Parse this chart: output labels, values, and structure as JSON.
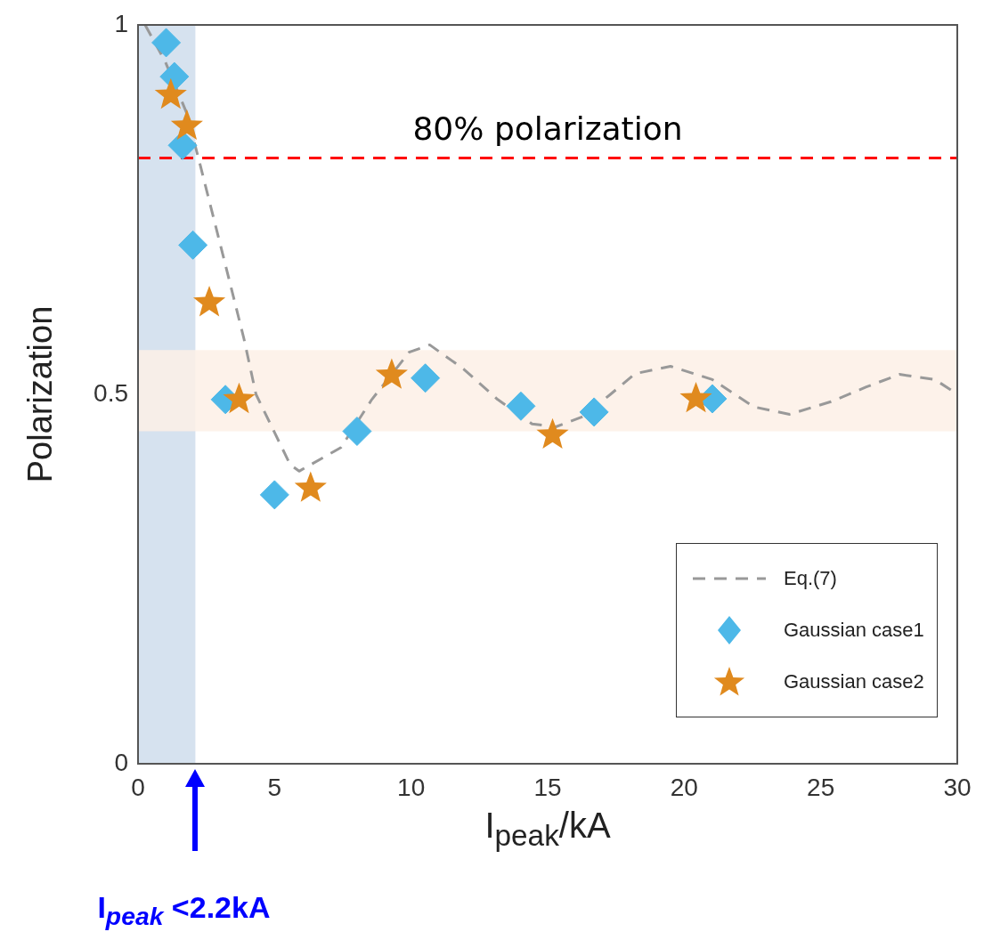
{
  "chart_data": {
    "type": "scatter",
    "xlabel": "I$_{peak}$/kA",
    "ylabel": "Polarization",
    "xlim": [
      0,
      30
    ],
    "xticks": [
      0,
      5,
      10,
      15,
      20,
      25,
      30
    ],
    "ylim": [
      0,
      1
    ],
    "yticks": [
      0,
      0.5,
      1
    ],
    "grid": false,
    "legend": "bottom right",
    "series": [
      {
        "name": "Eq.(7)",
        "type": "line",
        "color": "#999999",
        "line_style": "dashed",
        "marker": "none",
        "x": [
          0.26,
          1.0,
          1.79,
          2.28,
          3.1,
          3.88,
          4.32,
          5.57,
          5.9,
          7.43,
          8.56,
          9.93,
          10.68,
          11.93,
          13.17,
          14.43,
          15.3,
          16.3,
          17.3,
          18.2,
          19.5,
          21.03,
          22.55,
          23.86,
          25.37,
          26.67,
          27.88,
          29.18,
          29.93
        ],
        "values": [
          1.0,
          0.95,
          0.88,
          0.81,
          0.69,
          0.575,
          0.5,
          0.405,
          0.396,
          0.428,
          0.493,
          0.557,
          0.567,
          0.534,
          0.493,
          0.46,
          0.456,
          0.47,
          0.5,
          0.528,
          0.538,
          0.52,
          0.483,
          0.473,
          0.49,
          0.51,
          0.527,
          0.52,
          0.502
        ]
      },
      {
        "name": "Gaussian case1",
        "type": "scatter",
        "color": "#4db8e8",
        "marker": "diamond",
        "x": [
          1.03,
          1.33,
          1.63,
          2.01,
          3.2,
          5.0,
          8.02,
          10.52,
          14.02,
          16.7,
          21.03
        ],
        "values": [
          0.976,
          0.93,
          0.837,
          0.702,
          0.493,
          0.364,
          0.45,
          0.522,
          0.484,
          0.476,
          0.494
        ]
      },
      {
        "name": "Gaussian case2",
        "type": "scatter",
        "color": "#e08a1e",
        "marker": "star",
        "x": [
          1.2,
          1.79,
          2.61,
          3.7,
          6.32,
          9.29,
          15.18,
          20.43
        ],
        "values": [
          0.905,
          0.863,
          0.624,
          0.493,
          0.373,
          0.526,
          0.445,
          0.494
        ]
      }
    ],
    "ref_lines": [
      {
        "axis": "y",
        "value": 0.82,
        "label": "80% polarization",
        "color": "#ff0000",
        "line_style": "dashed"
      }
    ],
    "bands": [
      {
        "axis": "x",
        "from": 0,
        "to": 2.1,
        "color": "#d6e2ef"
      },
      {
        "axis": "y",
        "from": 0.45,
        "to": 0.56,
        "color": "#fdf0e6"
      }
    ],
    "annotations": [
      "I$_{peak}$ <2.2kA"
    ]
  }
}
